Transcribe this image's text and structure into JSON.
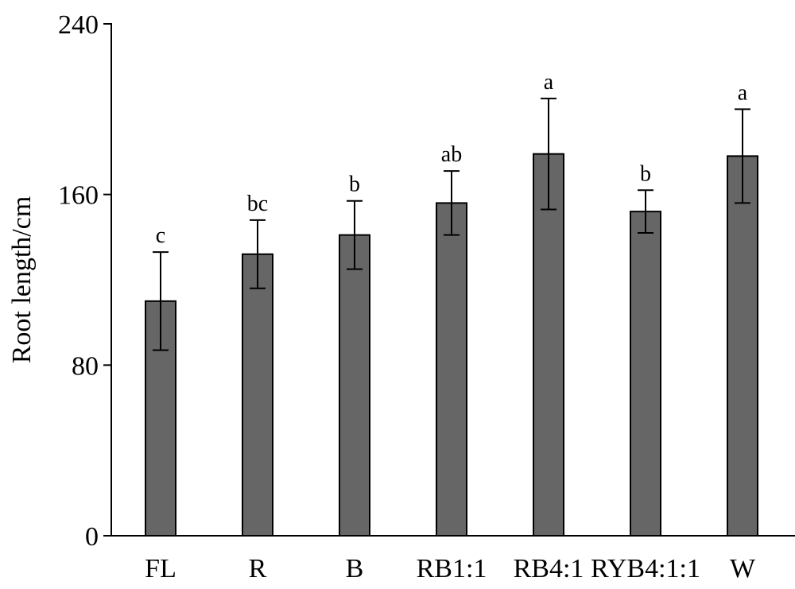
{
  "chart_data": {
    "type": "bar",
    "title": "",
    "xlabel": "",
    "ylabel": "Root length/cm",
    "ylim": [
      0,
      240
    ],
    "yticks": [
      0,
      80,
      160,
      240
    ],
    "categories": [
      "FL",
      "R",
      "B",
      "RB1:1",
      "RB4:1",
      "RYB4:1:1",
      "W"
    ],
    "series": [
      {
        "values": [
          110,
          132,
          141,
          156,
          179,
          152,
          178
        ],
        "errors": [
          23,
          16,
          16,
          15,
          26,
          10,
          22
        ],
        "significance": [
          "c",
          "bc",
          "b",
          "ab",
          "a",
          "b",
          "a"
        ],
        "color": "#666666"
      }
    ],
    "grid": false,
    "legend": "none"
  }
}
